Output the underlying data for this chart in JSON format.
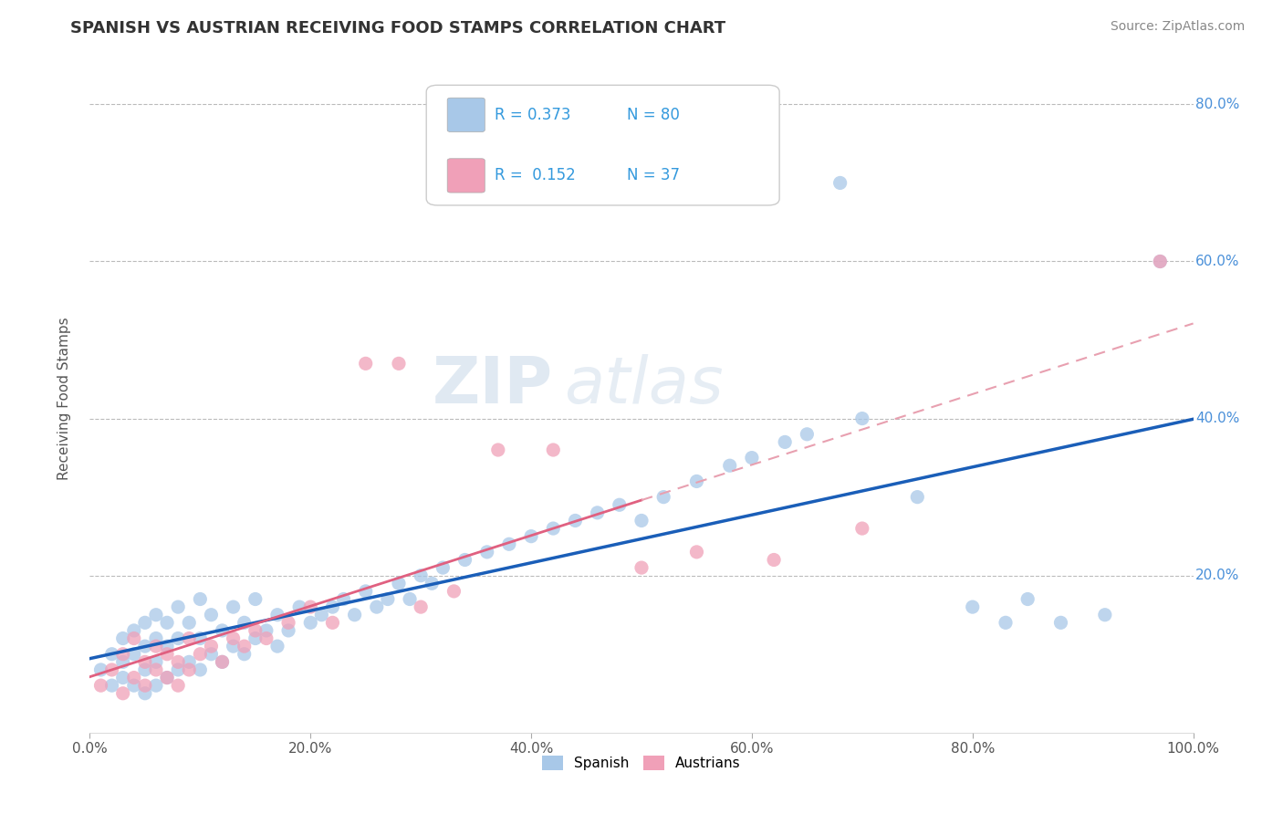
{
  "title": "SPANISH VS AUSTRIAN RECEIVING FOOD STAMPS CORRELATION CHART",
  "source": "Source: ZipAtlas.com",
  "ylabel": "Receiving Food Stamps",
  "xlim": [
    0,
    1.0
  ],
  "ylim": [
    0,
    0.85
  ],
  "xticks": [
    0.0,
    0.2,
    0.4,
    0.6,
    0.8,
    1.0
  ],
  "xticklabels": [
    "0.0%",
    "20.0%",
    "40.0%",
    "60.0%",
    "80.0%",
    "100.0%"
  ],
  "yticks": [
    0.2,
    0.4,
    0.6,
    0.8
  ],
  "yticklabels": [
    "20.0%",
    "40.0%",
    "60.0%",
    "80.0%"
  ],
  "spanish_color": "#a8c8e8",
  "austrian_color": "#f0a0b8",
  "spanish_line_color": "#1a5eb8",
  "austrian_line_solid_color": "#e06080",
  "austrian_line_dash_color": "#e8a0b0",
  "R_spanish": 0.373,
  "N_spanish": 80,
  "R_austrian": 0.152,
  "N_austrian": 37,
  "legend_label_spanish": "Spanish",
  "legend_label_austrian": "Austrians",
  "watermark_zip": "ZIP",
  "watermark_atlas": "atlas",
  "background_color": "#ffffff",
  "grid_color": "#bbbbbb",
  "spanish_x": [
    0.01,
    0.02,
    0.02,
    0.03,
    0.03,
    0.03,
    0.04,
    0.04,
    0.04,
    0.05,
    0.05,
    0.05,
    0.05,
    0.06,
    0.06,
    0.06,
    0.06,
    0.07,
    0.07,
    0.07,
    0.08,
    0.08,
    0.08,
    0.09,
    0.09,
    0.1,
    0.1,
    0.1,
    0.11,
    0.11,
    0.12,
    0.12,
    0.13,
    0.13,
    0.14,
    0.14,
    0.15,
    0.15,
    0.16,
    0.17,
    0.17,
    0.18,
    0.19,
    0.2,
    0.21,
    0.22,
    0.23,
    0.24,
    0.25,
    0.26,
    0.27,
    0.28,
    0.29,
    0.3,
    0.31,
    0.32,
    0.34,
    0.36,
    0.38,
    0.4,
    0.42,
    0.44,
    0.46,
    0.48,
    0.5,
    0.52,
    0.55,
    0.58,
    0.6,
    0.63,
    0.65,
    0.68,
    0.7,
    0.75,
    0.8,
    0.83,
    0.85,
    0.88,
    0.92,
    0.97
  ],
  "spanish_y": [
    0.08,
    0.06,
    0.1,
    0.07,
    0.09,
    0.12,
    0.06,
    0.1,
    0.13,
    0.05,
    0.08,
    0.11,
    0.14,
    0.06,
    0.09,
    0.12,
    0.15,
    0.07,
    0.11,
    0.14,
    0.08,
    0.12,
    0.16,
    0.09,
    0.14,
    0.08,
    0.12,
    0.17,
    0.1,
    0.15,
    0.09,
    0.13,
    0.11,
    0.16,
    0.1,
    0.14,
    0.12,
    0.17,
    0.13,
    0.11,
    0.15,
    0.13,
    0.16,
    0.14,
    0.15,
    0.16,
    0.17,
    0.15,
    0.18,
    0.16,
    0.17,
    0.19,
    0.17,
    0.2,
    0.19,
    0.21,
    0.22,
    0.23,
    0.24,
    0.25,
    0.26,
    0.27,
    0.28,
    0.29,
    0.27,
    0.3,
    0.32,
    0.34,
    0.35,
    0.37,
    0.38,
    0.7,
    0.4,
    0.3,
    0.16,
    0.14,
    0.17,
    0.14,
    0.15,
    0.6
  ],
  "austrian_x": [
    0.01,
    0.02,
    0.03,
    0.03,
    0.04,
    0.04,
    0.05,
    0.05,
    0.06,
    0.06,
    0.07,
    0.07,
    0.08,
    0.08,
    0.09,
    0.09,
    0.1,
    0.11,
    0.12,
    0.13,
    0.14,
    0.15,
    0.16,
    0.18,
    0.2,
    0.22,
    0.25,
    0.28,
    0.3,
    0.33,
    0.37,
    0.42,
    0.5,
    0.55,
    0.62,
    0.7,
    0.97
  ],
  "austrian_y": [
    0.06,
    0.08,
    0.05,
    0.1,
    0.07,
    0.12,
    0.06,
    0.09,
    0.08,
    0.11,
    0.07,
    0.1,
    0.06,
    0.09,
    0.08,
    0.12,
    0.1,
    0.11,
    0.09,
    0.12,
    0.11,
    0.13,
    0.12,
    0.14,
    0.16,
    0.14,
    0.47,
    0.47,
    0.16,
    0.18,
    0.36,
    0.36,
    0.21,
    0.23,
    0.22,
    0.26,
    0.6
  ]
}
